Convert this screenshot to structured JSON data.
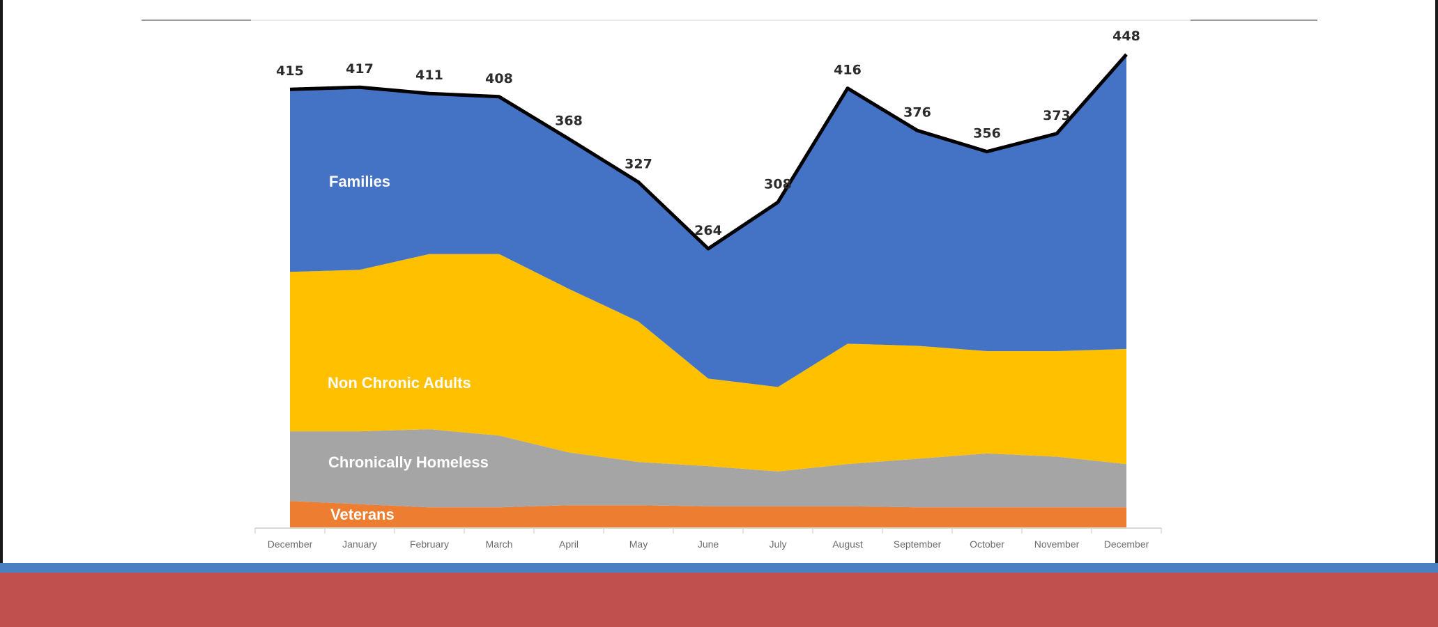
{
  "colors": {
    "veterans": "#ed7d31",
    "chronically_homeless": "#a5a5a5",
    "non_chronic_adults": "#ffc000",
    "families": "#4472c4",
    "total_line": "#000000",
    "footer_blue": "#4a7fc1",
    "footer_red": "#c0504d"
  },
  "chart_data": {
    "type": "area",
    "stacked": true,
    "categories": [
      "December",
      "January",
      "February",
      "March",
      "April",
      "May",
      "June",
      "July",
      "August",
      "September",
      "October",
      "November",
      "December"
    ],
    "ylim": [
      0,
      460
    ],
    "series": [
      {
        "name": "Veterans",
        "values": [
          25,
          22,
          19,
          19,
          21,
          21,
          20,
          20,
          20,
          19,
          19,
          19,
          19
        ]
      },
      {
        "name": "Chronically Homeless",
        "values": [
          66,
          69,
          74,
          68,
          50,
          41,
          38,
          33,
          40,
          46,
          51,
          48,
          41
        ]
      },
      {
        "name": "Non Chronic Adults",
        "values": [
          151,
          153,
          166,
          172,
          155,
          133,
          83,
          80,
          114,
          107,
          97,
          100,
          109
        ]
      },
      {
        "name": "Families",
        "values": [
          173,
          173,
          152,
          149,
          142,
          132,
          123,
          175,
          242,
          204,
          189,
          206,
          279
        ]
      }
    ],
    "totals": [
      415,
      417,
      411,
      408,
      368,
      327,
      264,
      308,
      416,
      376,
      356,
      373,
      448
    ]
  }
}
